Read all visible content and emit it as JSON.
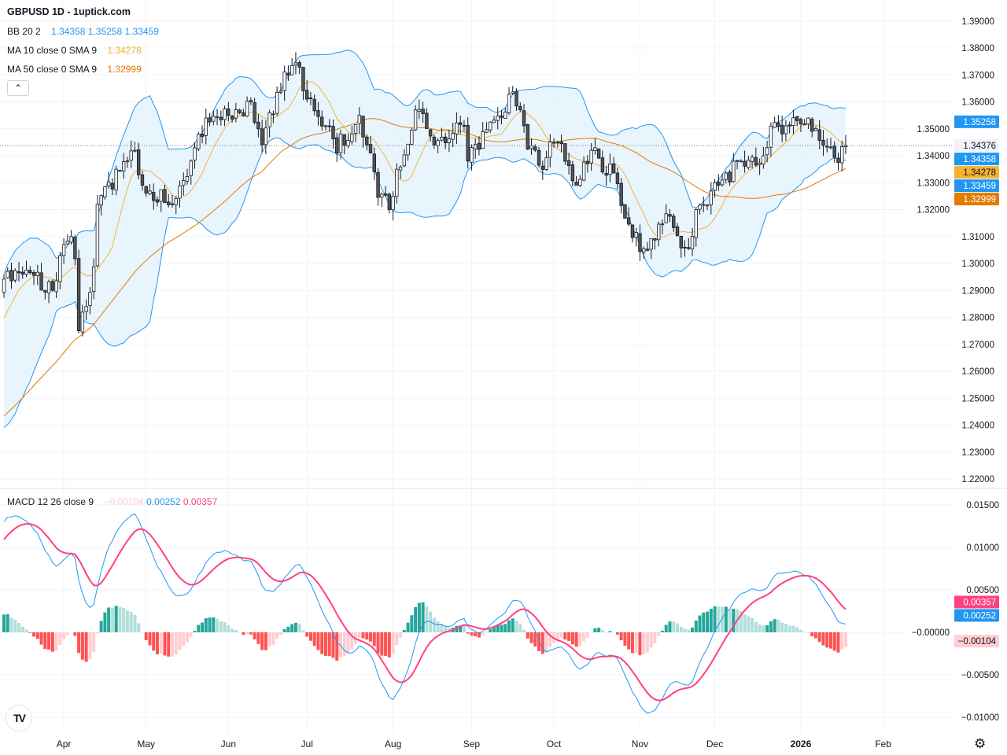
{
  "title": "GBPUSD 1D - 1uptick.com",
  "legend": {
    "bb": {
      "name": "BB 20 2",
      "basis": "1.34358",
      "upper": "1.35258",
      "lower": "1.33459"
    },
    "ma10": {
      "name": "MA 10 close 0 SMA 9",
      "value": "1.34278"
    },
    "ma50": {
      "name": "MA 50 close 0 SMA 9",
      "value": "1.32999"
    },
    "macd": {
      "name": "MACD 12 26 close 9",
      "hist": "−0.00104",
      "macd": "0.00252",
      "signal": "0.00357"
    }
  },
  "colors": {
    "bb_line": "#2196f3",
    "bb_fill": "#e3f2fd",
    "ma10": "#f5b331",
    "ma50": "#e07b00",
    "candle_up": "#ffffff",
    "candle_down": "#555555",
    "candle_border": "#131722",
    "macd_line": "#2196f3",
    "signal_line": "#ff4081",
    "hist_up_strong": "#26a69a",
    "hist_up_weak": "#b2dfdb",
    "hist_down_strong": "#ff5252",
    "hist_down_weak": "#ffcdd2",
    "grid": "#f0f3fa"
  },
  "icons": {
    "collapse": "chevron-up-icon",
    "logo": "tradingview-logo",
    "settings": "gear-icon"
  },
  "logo_text": "TV",
  "chart_data": [
    {
      "type": "candlestick",
      "symbol": "GBPUSD",
      "interval": "1D",
      "price_axis": {
        "ticks": [
          "1.39000",
          "1.38000",
          "1.37000",
          "1.36000",
          "1.35000",
          "1.34000",
          "1.33000",
          "1.32000",
          "1.31000",
          "1.30000",
          "1.29000",
          "1.28000",
          "1.27000",
          "1.26000",
          "1.25000",
          "1.24000",
          "1.23000",
          "1.22000"
        ],
        "ylim": [
          1.2155,
          1.3917
        ]
      },
      "price_labels": [
        {
          "text": "1.35258",
          "value": 1.35258,
          "color": "#2196f3"
        },
        {
          "text": "1.34376",
          "value": 1.34376,
          "color": "#f0f3fa",
          "current": true
        },
        {
          "text": "1.34358",
          "value": 1.34358,
          "color": "#2196f3"
        },
        {
          "text": "1.34278",
          "value": 1.34278,
          "color": "#f5b331"
        },
        {
          "text": "1.33459",
          "value": 1.33459,
          "color": "#2196f3"
        },
        {
          "text": "1.32999",
          "value": 1.32999,
          "color": "#e07b00"
        }
      ],
      "close_path": [
        [
          "2025-03-10",
          1.2942
        ],
        [
          "2025-03-20",
          1.2956
        ],
        [
          "2025-03-27",
          1.29
        ],
        [
          "2025-04-03",
          1.31
        ],
        [
          "2025-04-07",
          1.275
        ],
        [
          "2025-04-09",
          1.284
        ],
        [
          "2025-04-14",
          1.322
        ],
        [
          "2025-04-21",
          1.335
        ],
        [
          "2025-04-28",
          1.342
        ],
        [
          "2025-04-30",
          1.329
        ],
        [
          "2025-05-12",
          1.322
        ],
        [
          "2025-05-19",
          1.338
        ],
        [
          "2025-05-23",
          1.354
        ],
        [
          "2025-06-02",
          1.355
        ],
        [
          "2025-06-10",
          1.36
        ],
        [
          "2025-06-13",
          1.344
        ],
        [
          "2025-06-20",
          1.364
        ],
        [
          "2025-06-26",
          1.3745
        ],
        [
          "2025-07-01",
          1.361
        ],
        [
          "2025-07-09",
          1.351
        ],
        [
          "2025-07-11",
          1.341
        ],
        [
          "2025-07-21",
          1.355
        ],
        [
          "2025-07-23",
          1.344
        ],
        [
          "2025-07-25",
          1.334
        ],
        [
          "2025-07-31",
          1.32
        ],
        [
          "2025-08-04",
          1.335
        ],
        [
          "2025-08-11",
          1.357
        ],
        [
          "2025-08-18",
          1.344
        ],
        [
          "2025-08-28",
          1.351
        ],
        [
          "2025-08-29",
          1.338
        ],
        [
          "2025-09-08",
          1.3525
        ],
        [
          "2025-09-15",
          1.3628
        ],
        [
          "2025-09-18",
          1.357
        ],
        [
          "2025-09-25",
          1.3365
        ],
        [
          "2025-10-02",
          1.345
        ],
        [
          "2025-10-09",
          1.329
        ],
        [
          "2025-10-15",
          1.342
        ],
        [
          "2025-10-23",
          1.3336
        ],
        [
          "2025-10-29",
          1.3146
        ],
        [
          "2025-11-03",
          1.3044
        ],
        [
          "2025-11-10",
          1.3146
        ],
        [
          "2025-11-13",
          1.3175
        ],
        [
          "2025-11-19",
          1.3058
        ],
        [
          "2025-11-26",
          1.3219
        ],
        [
          "2025-12-02",
          1.329
        ],
        [
          "2025-12-10",
          1.338
        ],
        [
          "2025-12-16",
          1.3365
        ],
        [
          "2025-12-22",
          1.351
        ],
        [
          "2025-12-29",
          1.351
        ],
        [
          "2026-01-05",
          1.354
        ],
        [
          "2026-01-09",
          1.3438
        ],
        [
          "2026-01-14",
          1.3394
        ],
        [
          "2026-01-19",
          1.34376
        ]
      ],
      "indicators": [
        "BB 20 2",
        "MA 10",
        "MA 50"
      ]
    },
    {
      "type": "macd",
      "name": "MACD 12 26 close 9",
      "y_axis": {
        "ticks": [
          "0.01500",
          "0.01000",
          "0.00500",
          "−0.00000",
          "−0.00500",
          "−0.01000"
        ],
        "ylim": [
          -0.0111,
          0.0165
        ]
      },
      "value_labels": [
        {
          "text": "0.00357",
          "value": 0.00357,
          "color": "#ff4081"
        },
        {
          "text": "0.00252",
          "value": 0.00252,
          "color": "#2196f3"
        },
        {
          "text": "−0.00104",
          "value": -0.00104,
          "color": "#ffcdd2"
        }
      ]
    }
  ],
  "time_axis": [
    {
      "label": "Apr",
      "date": "2025-04-01"
    },
    {
      "label": "May",
      "date": "2025-05-01"
    },
    {
      "label": "Jun",
      "date": "2025-06-02"
    },
    {
      "label": "Jul",
      "date": "2025-07-01"
    },
    {
      "label": "Aug",
      "date": "2025-08-01"
    },
    {
      "label": "Sep",
      "date": "2025-09-01"
    },
    {
      "label": "Oct",
      "date": "2025-10-01"
    },
    {
      "label": "Nov",
      "date": "2025-11-03"
    },
    {
      "label": "Dec",
      "date": "2025-12-01"
    },
    {
      "label": "2026",
      "date": "2026-01-01"
    },
    {
      "label": "Feb",
      "date": "2026-02-02"
    }
  ]
}
